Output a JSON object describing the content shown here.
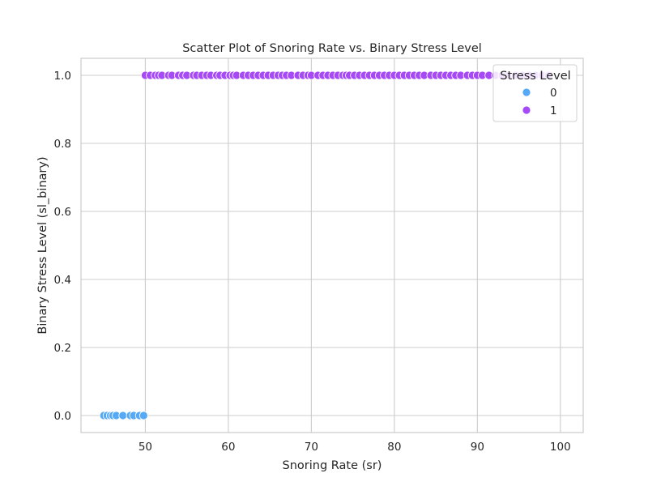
{
  "chart_data": {
    "type": "scatter",
    "title": "Scatter Plot of Snoring Rate vs. Binary Stress Level",
    "xlabel": "Snoring Rate (sr)",
    "ylabel": "Binary Stress Level (sl_binary)",
    "xlim": [
      42.25,
      102.75
    ],
    "ylim": [
      -0.05,
      1.05
    ],
    "xticks": [
      50,
      60,
      70,
      80,
      90,
      100
    ],
    "xtick_labels": [
      "50",
      "60",
      "70",
      "80",
      "90",
      "100"
    ],
    "yticks": [
      0.0,
      0.2,
      0.4,
      0.6,
      0.8,
      1.0
    ],
    "ytick_labels": [
      "0.0",
      "0.2",
      "0.4",
      "0.6",
      "0.8",
      "1.0"
    ],
    "grid": true,
    "legend": {
      "title": "Stress Level",
      "placement": "top-right",
      "entries": [
        "0",
        "1"
      ]
    },
    "series": [
      {
        "name": "0",
        "color": "#56a9f4",
        "points": [
          [
            45.0,
            0
          ],
          [
            45.4,
            0
          ],
          [
            45.8,
            0
          ],
          [
            46.1,
            0
          ],
          [
            46.5,
            0
          ],
          [
            47.3,
            0
          ],
          [
            48.2,
            0
          ],
          [
            48.6,
            0
          ],
          [
            49.3,
            0
          ],
          [
            49.8,
            0
          ]
        ]
      },
      {
        "name": "1",
        "color": "#a64af6",
        "points": [
          [
            50.0,
            1
          ],
          [
            50.6,
            1
          ],
          [
            51.2,
            1
          ],
          [
            51.6,
            1
          ],
          [
            52.0,
            1
          ],
          [
            52.8,
            1
          ],
          [
            53.2,
            1
          ],
          [
            54.0,
            1
          ],
          [
            54.5,
            1
          ],
          [
            55.0,
            1
          ],
          [
            55.8,
            1
          ],
          [
            56.2,
            1
          ],
          [
            56.8,
            1
          ],
          [
            57.4,
            1
          ],
          [
            57.9,
            1
          ],
          [
            58.6,
            1
          ],
          [
            59.0,
            1
          ],
          [
            59.6,
            1
          ],
          [
            60.2,
            1
          ],
          [
            60.6,
            1
          ],
          [
            61.0,
            1
          ],
          [
            61.8,
            1
          ],
          [
            62.4,
            1
          ],
          [
            63.0,
            1
          ],
          [
            63.6,
            1
          ],
          [
            64.2,
            1
          ],
          [
            64.8,
            1
          ],
          [
            65.4,
            1
          ],
          [
            66.0,
            1
          ],
          [
            66.5,
            1
          ],
          [
            67.0,
            1
          ],
          [
            67.6,
            1
          ],
          [
            68.4,
            1
          ],
          [
            69.0,
            1
          ],
          [
            69.6,
            1
          ],
          [
            70.0,
            1
          ],
          [
            70.8,
            1
          ],
          [
            71.4,
            1
          ],
          [
            72.0,
            1
          ],
          [
            72.6,
            1
          ],
          [
            73.2,
            1
          ],
          [
            73.8,
            1
          ],
          [
            74.2,
            1
          ],
          [
            74.6,
            1
          ],
          [
            75.2,
            1
          ],
          [
            75.8,
            1
          ],
          [
            76.4,
            1
          ],
          [
            77.0,
            1
          ],
          [
            77.6,
            1
          ],
          [
            78.2,
            1
          ],
          [
            78.8,
            1
          ],
          [
            79.4,
            1
          ],
          [
            80.0,
            1
          ],
          [
            80.6,
            1
          ],
          [
            81.2,
            1
          ],
          [
            81.8,
            1
          ],
          [
            82.4,
            1
          ],
          [
            83.0,
            1
          ],
          [
            83.6,
            1
          ],
          [
            84.4,
            1
          ],
          [
            85.0,
            1
          ],
          [
            85.6,
            1
          ],
          [
            86.2,
            1
          ],
          [
            86.8,
            1
          ],
          [
            87.4,
            1
          ],
          [
            88.0,
            1
          ],
          [
            88.8,
            1
          ],
          [
            89.4,
            1
          ],
          [
            90.0,
            1
          ],
          [
            90.6,
            1
          ],
          [
            91.4,
            1
          ],
          [
            92.2,
            1
          ],
          [
            93.0,
            1
          ],
          [
            93.8,
            1
          ],
          [
            94.6,
            1
          ],
          [
            95.4,
            1
          ],
          [
            96.2,
            1
          ],
          [
            97.0,
            1
          ],
          [
            97.8,
            1
          ],
          [
            98.6,
            1
          ]
        ]
      }
    ]
  }
}
